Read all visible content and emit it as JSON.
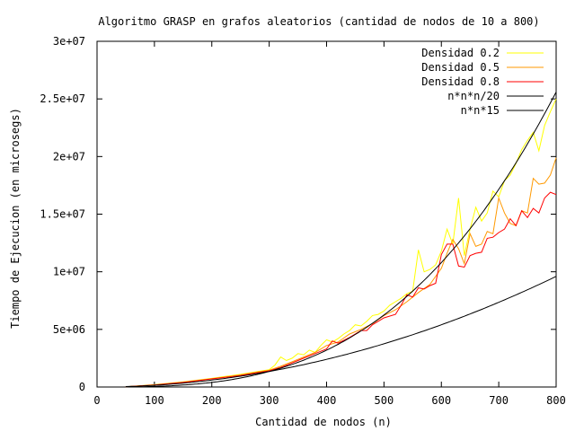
{
  "chart_data": {
    "type": "line",
    "title": "Algoritmo GRASP en grafos aleatorios (cantidad de nodos de 10 a 800)",
    "xlabel": "Cantidad de nodos (n)",
    "ylabel": "Tiempo de Ejecucion (en microsegs)",
    "xlim": [
      0,
      800
    ],
    "ylim": [
      0,
      30000000
    ],
    "x_ticks": [
      0,
      100,
      200,
      300,
      400,
      500,
      600,
      700,
      800
    ],
    "x_tick_labels": [
      "0",
      "100",
      "200",
      "300",
      "400",
      "500",
      "600",
      "700",
      "800"
    ],
    "y_ticks": [
      0,
      5000000,
      10000000,
      15000000,
      20000000,
      25000000,
      30000000
    ],
    "y_tick_labels": [
      "0",
      "5e+06",
      "1e+07",
      "1.5e+07",
      "2e+07",
      "2.5e+07",
      "3e+07"
    ],
    "grid": false,
    "legend_position": "top-right",
    "series": [
      {
        "name": "Densidad 0.2",
        "color": "#ffff00",
        "x": [
          50,
          100,
          150,
          200,
          250,
          280,
          300,
          310,
          320,
          330,
          340,
          350,
          360,
          370,
          380,
          390,
          400,
          410,
          420,
          430,
          440,
          450,
          460,
          470,
          480,
          490,
          500,
          510,
          520,
          530,
          540,
          550,
          560,
          570,
          580,
          590,
          600,
          610,
          620,
          630,
          640,
          650,
          660,
          670,
          680,
          690,
          700,
          710,
          720,
          730,
          740,
          750,
          760,
          770,
          780,
          790,
          800
        ],
        "y": [
          20000,
          200000,
          450000,
          750000,
          1100000,
          1350000,
          1500000,
          1900000,
          2600000,
          2300000,
          2500000,
          2900000,
          2800000,
          3200000,
          3000000,
          3600000,
          4100000,
          3900000,
          4200000,
          4600000,
          4900000,
          5400000,
          5300000,
          5700000,
          6200000,
          6300000,
          6600000,
          7100000,
          7400000,
          7700000,
          8100000,
          8300000,
          11900000,
          10000000,
          10200000,
          10600000,
          11800000,
          13700000,
          12400000,
          16400000,
          11400000,
          13700000,
          15600000,
          14400000,
          15100000,
          17000000,
          16500000,
          17900000,
          18400000,
          19400000,
          20600000,
          21400000,
          22100000,
          20500000,
          22700000,
          23900000,
          25000000
        ]
      },
      {
        "name": "Densidad 0.5",
        "color": "#ff9900",
        "x": [
          50,
          100,
          150,
          200,
          250,
          280,
          300,
          320,
          340,
          360,
          380,
          400,
          420,
          440,
          460,
          480,
          500,
          520,
          540,
          560,
          580,
          600,
          610,
          620,
          630,
          640,
          650,
          660,
          670,
          680,
          690,
          700,
          710,
          720,
          730,
          740,
          750,
          760,
          770,
          780,
          790,
          800
        ],
        "y": [
          20000,
          180000,
          420000,
          720000,
          1050000,
          1300000,
          1450000,
          1800000,
          2200000,
          2600000,
          3000000,
          3600000,
          3900000,
          4600000,
          5000000,
          5500000,
          6200000,
          6700000,
          7400000,
          8200000,
          8900000,
          10300000,
          11600000,
          12800000,
          12000000,
          10700000,
          13300000,
          12200000,
          12400000,
          13500000,
          13300000,
          16400000,
          15100000,
          14200000,
          14000000,
          15300000,
          15100000,
          18100000,
          17600000,
          17700000,
          18400000,
          19900000
        ]
      },
      {
        "name": "Densidad 0.8",
        "color": "#ff0000",
        "x": [
          50,
          100,
          150,
          200,
          250,
          280,
          300,
          320,
          340,
          360,
          380,
          400,
          410,
          420,
          440,
          460,
          470,
          480,
          500,
          520,
          530,
          540,
          550,
          560,
          570,
          580,
          590,
          600,
          610,
          620,
          630,
          640,
          650,
          660,
          670,
          680,
          690,
          700,
          710,
          720,
          730,
          740,
          750,
          760,
          770,
          780,
          790,
          800
        ],
        "y": [
          20000,
          170000,
          400000,
          700000,
          1000000,
          1250000,
          1400000,
          1700000,
          2100000,
          2500000,
          2900000,
          3300000,
          4000000,
          3800000,
          4300000,
          4900000,
          4900000,
          5400000,
          6000000,
          6300000,
          7100000,
          8000000,
          7800000,
          8600000,
          8500000,
          8800000,
          9000000,
          11500000,
          12400000,
          12400000,
          10500000,
          10400000,
          11400000,
          11600000,
          11700000,
          12900000,
          13000000,
          13400000,
          13700000,
          14600000,
          14000000,
          15300000,
          14700000,
          15500000,
          15100000,
          16400000,
          16900000,
          16700000
        ]
      },
      {
        "name": "n*n*n/20",
        "color": "#000000",
        "function": "cubic",
        "coef": 0.05,
        "x_range": [
          50,
          800
        ]
      },
      {
        "name": "n*n*15",
        "color": "#000000",
        "function": "quadratic",
        "coef": 15,
        "x_range": [
          50,
          800
        ]
      }
    ]
  }
}
